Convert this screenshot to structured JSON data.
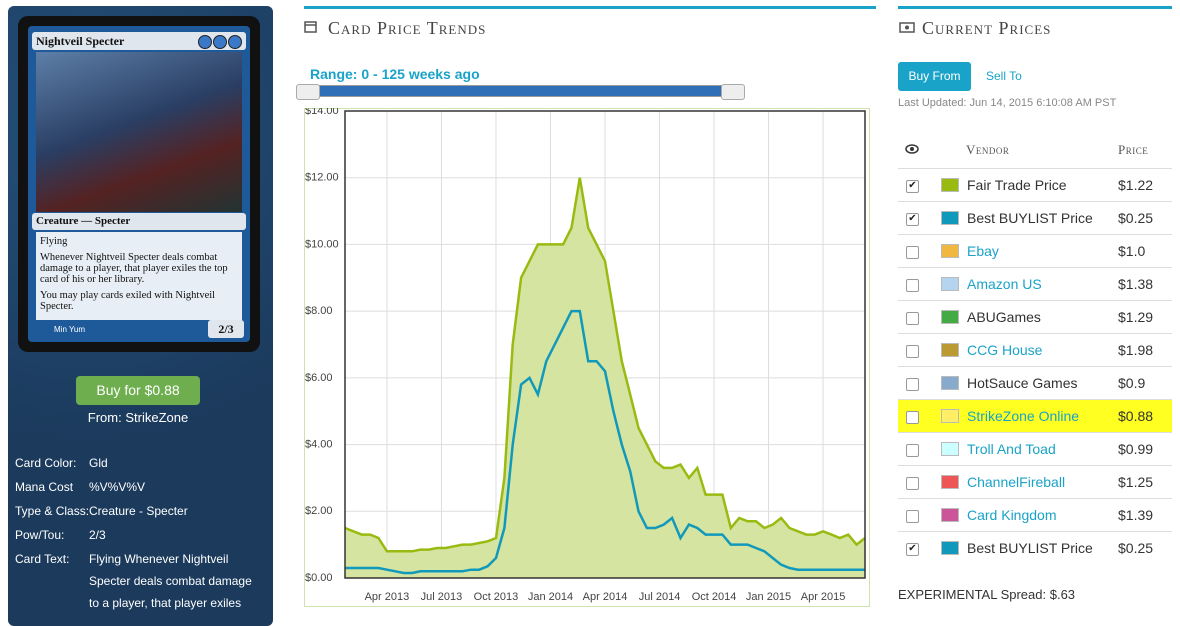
{
  "card": {
    "name": "Nightveil Specter",
    "type_line": "Creature — Specter",
    "rules": [
      "Flying",
      "Whenever Nightveil Specter deals combat damage to a player, that player exiles the top card of his or her library.",
      "You may play cards exiled with Nightveil Specter."
    ],
    "pt": "2/3",
    "artist": "Min Yum"
  },
  "buy_button": "Buy for $0.88",
  "buy_from": "From: StrikeZone",
  "details": [
    {
      "label": "Card Color:",
      "value": "Gld"
    },
    {
      "label": "Mana Cost",
      "value": "%V%V%V"
    },
    {
      "label": "Type & Class:",
      "value": "Creature - Specter"
    },
    {
      "label": "Pow/Tou:",
      "value": "2/3"
    },
    {
      "label": "Card Text:",
      "value": "Flying Whenever Nightveil Specter deals combat damage to a player, that player exiles"
    }
  ],
  "trends_title": "Card Price Trends",
  "range": "Range: 0 - 125 weeks ago",
  "chart_data": {
    "type": "line",
    "x": [
      0,
      2,
      4,
      6,
      8,
      10,
      12,
      14,
      16,
      18,
      20,
      22,
      24,
      26,
      28,
      30,
      32,
      34,
      36,
      38,
      40,
      42,
      44,
      46,
      48,
      50,
      52,
      54,
      56,
      58,
      60,
      62,
      64,
      66,
      68,
      70,
      72,
      74,
      76,
      78,
      80,
      82,
      84,
      86,
      88,
      90,
      92,
      94,
      96,
      98,
      100,
      102,
      104,
      106,
      108,
      110,
      112,
      114,
      116,
      118,
      120,
      122,
      124
    ],
    "series": [
      {
        "color": "#99bb11",
        "fill": "#d5e4a0",
        "area": true,
        "values": [
          1.5,
          1.4,
          1.3,
          1.3,
          1.2,
          0.8,
          0.8,
          0.8,
          0.8,
          0.85,
          0.85,
          0.9,
          0.9,
          0.95,
          1.0,
          1.0,
          1.05,
          1.1,
          1.2,
          3.0,
          7.0,
          9.0,
          9.5,
          10.0,
          10.0,
          10.0,
          10.0,
          10.5,
          12.0,
          10.5,
          10.0,
          9.5,
          8.0,
          6.5,
          5.5,
          4.5,
          4.0,
          3.5,
          3.3,
          3.3,
          3.4,
          3.0,
          3.3,
          2.5,
          2.5,
          2.5,
          1.5,
          1.8,
          1.7,
          1.7,
          1.5,
          1.6,
          1.8,
          1.5,
          1.4,
          1.3,
          1.3,
          1.4,
          1.3,
          1.2,
          1.3,
          1.0,
          1.2
        ]
      },
      {
        "color": "#1199bb",
        "area": false,
        "values": [
          0.3,
          0.3,
          0.3,
          0.3,
          0.3,
          0.25,
          0.2,
          0.15,
          0.15,
          0.2,
          0.2,
          0.2,
          0.2,
          0.2,
          0.2,
          0.25,
          0.25,
          0.35,
          0.6,
          1.5,
          4.0,
          5.8,
          6.0,
          5.5,
          6.5,
          7.0,
          7.5,
          8.0,
          8.0,
          6.5,
          6.5,
          6.2,
          5.0,
          4.0,
          3.2,
          2.0,
          1.5,
          1.5,
          1.6,
          1.8,
          1.2,
          1.6,
          1.5,
          1.3,
          1.3,
          1.3,
          1.0,
          1.0,
          1.0,
          0.9,
          0.8,
          0.6,
          0.4,
          0.3,
          0.25,
          0.25,
          0.25,
          0.25,
          0.25,
          0.25,
          0.25,
          0.25,
          0.25
        ]
      }
    ],
    "xlim": [
      0,
      124
    ],
    "xticks": [
      {
        "value": 10,
        "label": "Apr 2013"
      },
      {
        "value": 23,
        "label": "Jul 2013"
      },
      {
        "value": 36,
        "label": "Oct 2013"
      },
      {
        "value": 49,
        "label": "Jan 2014"
      },
      {
        "value": 62,
        "label": "Apr 2014"
      },
      {
        "value": 75,
        "label": "Jul 2014"
      },
      {
        "value": 88,
        "label": "Oct 2014"
      },
      {
        "value": 101,
        "label": "Jan 2015"
      },
      {
        "value": 114,
        "label": "Apr 2015"
      }
    ],
    "ylim": [
      0,
      14
    ],
    "yticks": [
      {
        "value": 0,
        "label": "$0.00"
      },
      {
        "value": 2,
        "label": "$2.00"
      },
      {
        "value": 4,
        "label": "$4.00"
      },
      {
        "value": 6,
        "label": "$6.00"
      },
      {
        "value": 8,
        "label": "$8.00"
      },
      {
        "value": 10,
        "label": "$10.00"
      },
      {
        "value": 12,
        "label": "$12.00"
      },
      {
        "value": 14,
        "label": "$14.00"
      }
    ],
    "grid": true
  },
  "prices_title": "Current Prices",
  "tabs": [
    "Buy From",
    "Sell To"
  ],
  "last_updated": "Last Updated: Jun 14, 2015 6:10:08 AM PST",
  "headers": [
    "Vendor",
    "Price"
  ],
  "vendors": [
    {
      "vendor": "Fair Trade Price",
      "price": "$1.22",
      "color": "#99bb11",
      "checked": true,
      "link": false
    },
    {
      "vendor": "Best BUYLIST Price",
      "price": "$0.25",
      "color": "#1199bb",
      "checked": true,
      "link": false
    },
    {
      "vendor": "Ebay",
      "price": "$1.0",
      "color": "#f0b840",
      "checked": false,
      "link": true
    },
    {
      "vendor": "Amazon US",
      "price": "$1.38",
      "color": "#b4d4f0",
      "checked": false,
      "link": true
    },
    {
      "vendor": "ABUGames",
      "price": "$1.29",
      "color": "#44aa44",
      "checked": false,
      "link": false
    },
    {
      "vendor": "CCG House",
      "price": "$1.98",
      "color": "#bb9933",
      "checked": false,
      "link": true
    },
    {
      "vendor": "HotSauce Games",
      "price": "$0.9",
      "color": "#88aacc",
      "checked": false,
      "link": false
    },
    {
      "vendor": "StrikeZone Online",
      "price": "$0.88",
      "color": "#ffee66",
      "checked": false,
      "link": true,
      "highlight": "#ffff22"
    },
    {
      "vendor": "Troll And Toad",
      "price": "$0.99",
      "color": "#ccffff",
      "checked": false,
      "link": true
    },
    {
      "vendor": "ChannelFireball",
      "price": "$1.25",
      "color": "#ee5555",
      "checked": false,
      "link": true
    },
    {
      "vendor": "Card Kingdom",
      "price": "$1.39",
      "color": "#cc5599",
      "checked": false,
      "link": true
    },
    {
      "vendor": "Best BUYLIST Price",
      "price": "$0.25",
      "color": "#1199bb",
      "checked": true,
      "link": false
    }
  ],
  "spread": "EXPERIMENTAL Spread: $.63"
}
